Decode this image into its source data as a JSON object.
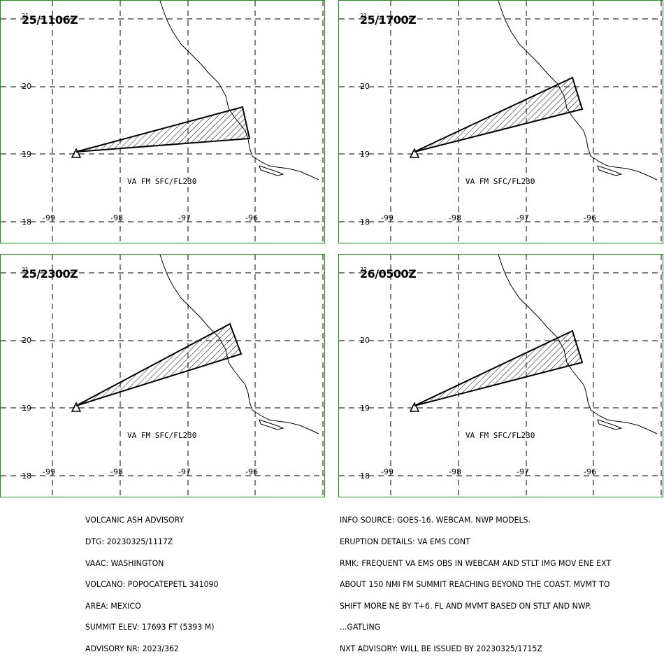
{
  "panels": [
    {
      "time": "25/1106Z",
      "level_label": "VA FM SFC/FL230",
      "corner_mark": "21"
    },
    {
      "time": "25/1700Z",
      "level_label": "VA FM SFC/FL230",
      "corner_mark": "21"
    },
    {
      "time": "25/2300Z",
      "level_label": "VA FM SFC/FL230",
      "corner_mark": "21"
    },
    {
      "time": "26/0500Z",
      "level_label": "VA FM SFC/FL230",
      "corner_mark": "21"
    }
  ],
  "axes": {
    "lat_labels": [
      "20",
      "19",
      "18"
    ],
    "lon_labels": [
      "-99",
      "-98",
      "-97",
      "-96"
    ]
  },
  "advisory_left": [
    "VOLCANIC ASH ADVISORY",
    "DTG: 20230325/1117Z",
    "VAAC: WASHINGTON",
    "VOLCANO: POPOCATEPETL 341090",
    "AREA: MEXICO",
    "SUMMIT ELEV: 17693 FT (5393 M)",
    "ADVISORY NR: 2023/362"
  ],
  "advisory_right": [
    "INFO SOURCE: GOES-16. WEBCAM. NWP MODELS.",
    "ERUPTION DETAILS: VA EMS CONT",
    "RMK: FREQUENT VA EMS OBS IN WEBCAM AND STLT IMG MOV ENE EXT",
    "ABOUT 150 NMI FM SUMMIT REACHING BEYOND THE COAST. MVMT TO",
    "SHIFT MORE NE BY T+6. FL AND MVMT BASED ON STLT AND NWP.",
    "...GATLING",
    "NXT ADVISORY: WILL BE ISSUED BY 20230325/1715Z"
  ],
  "colors": {
    "panel_border": "#1f8a1f",
    "grid": "#000000",
    "ash": "#000000"
  }
}
